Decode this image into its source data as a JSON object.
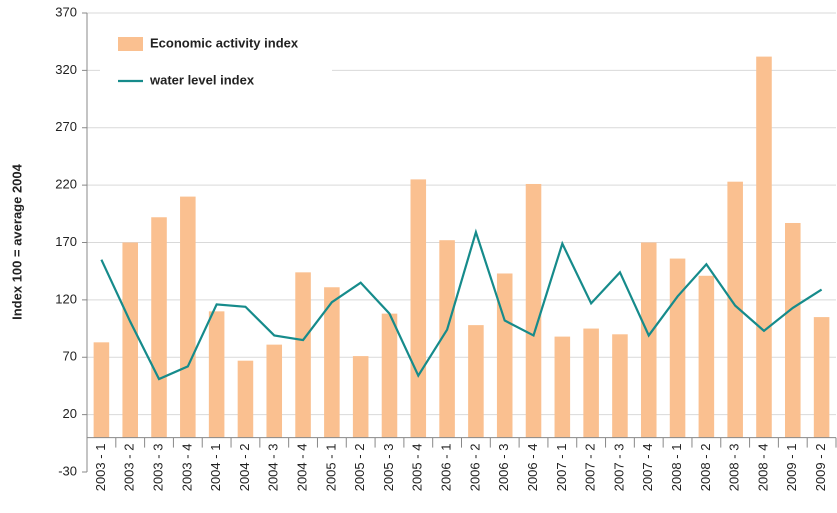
{
  "chart_data": {
    "type": "bar_line",
    "y_label": "Index  100 = average  2004",
    "categories": [
      "2003 - 1",
      "2003 - 2",
      "2003 - 3",
      "2003 - 4",
      "2004 - 1",
      "2004 - 2",
      "2004 - 3",
      "2004 - 4",
      "2005 - 1",
      "2005 - 2",
      "2005 - 3",
      "2005 - 4",
      "2006 - 1",
      "2006 - 2",
      "2006 - 3",
      "2006 - 4",
      "2007 - 1",
      "2007 - 2",
      "2007 - 3",
      "2007 - 4",
      "2008 - 1",
      "2008 - 2",
      "2008 - 3",
      "2008 - 4",
      "2009 - 1",
      "2009 - 2"
    ],
    "series": [
      {
        "name": "Economic activity index",
        "type": "bar",
        "color": "#fac090",
        "values": [
          83,
          170,
          192,
          210,
          110,
          67,
          81,
          144,
          131,
          71,
          108,
          225,
          172,
          98,
          143,
          221,
          88,
          95,
          90,
          170,
          156,
          141,
          223,
          332,
          187,
          105
        ]
      },
      {
        "name": "water level index",
        "type": "line",
        "color": "#168b8b",
        "values": [
          155,
          101,
          51,
          62,
          116,
          114,
          89,
          85,
          118,
          135,
          108,
          54,
          94,
          179,
          102,
          89,
          169,
          117,
          144,
          89,
          123,
          151,
          115,
          93,
          113,
          129
        ]
      }
    ],
    "ylim": [
      -30,
      370
    ],
    "yticks": [
      -30,
      20,
      70,
      120,
      170,
      220,
      270,
      320,
      370
    ],
    "grid": true
  }
}
